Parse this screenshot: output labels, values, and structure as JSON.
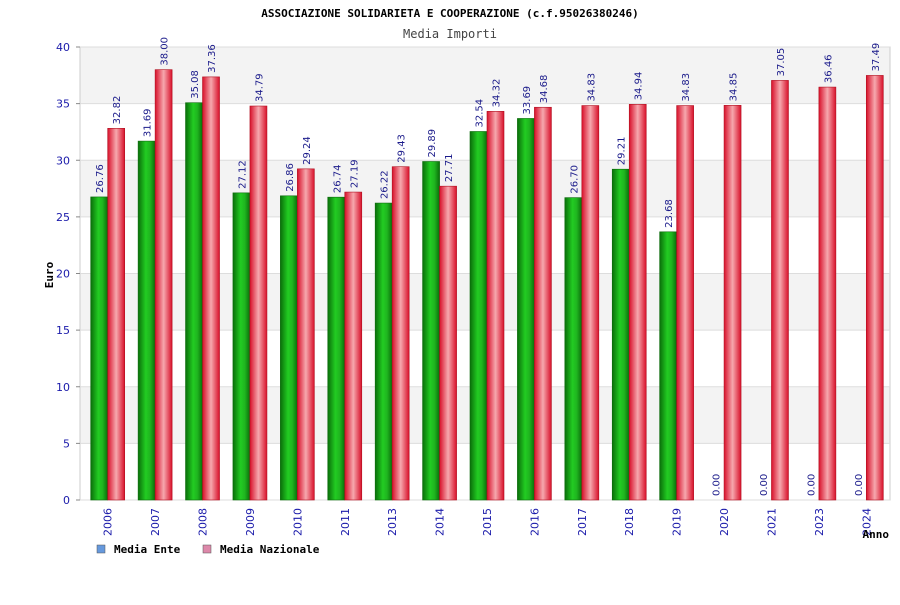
{
  "chart_data": {
    "type": "bar",
    "title": "ASSOCIAZIONE SOLIDARIETA E COOPERAZIONE (c.f.95026380246)",
    "subtitle": "Media Importi",
    "xlabel": "Anno",
    "ylabel": "Euro",
    "ylim": [
      0,
      40
    ],
    "yticks": [
      "0",
      "5",
      "10",
      "15",
      "20",
      "25",
      "30",
      "35",
      "40"
    ],
    "grid": true,
    "legend_position": "bottom-left",
    "categories": [
      "2006",
      "2007",
      "2008",
      "2009",
      "2010",
      "2011",
      "2013",
      "2014",
      "2015",
      "2016",
      "2017",
      "2018",
      "2019",
      "2020",
      "2021",
      "2023",
      "2024"
    ],
    "series": [
      {
        "name": "Media Ente",
        "color": "#1aa81a",
        "legend_color": "#6699dd",
        "values": [
          26.76,
          31.69,
          35.08,
          27.12,
          26.86,
          26.74,
          26.22,
          29.89,
          32.54,
          33.69,
          26.7,
          29.21,
          23.68,
          0.0,
          0.0,
          0.0,
          0.0
        ],
        "labels": [
          "26.76",
          "31.69",
          "35.08",
          "27.12",
          "26.86",
          "26.74",
          "26.22",
          "29.89",
          "32.54",
          "33.69",
          "26.70",
          "29.21",
          "23.68",
          "0.00",
          "0.00",
          "0.00",
          "0.00"
        ]
      },
      {
        "name": "Media Nazionale",
        "color": "#e8323c",
        "legend_color": "#dd88aa",
        "values": [
          32.82,
          38.0,
          37.36,
          34.79,
          29.24,
          27.19,
          29.43,
          27.71,
          34.32,
          34.68,
          34.83,
          34.94,
          34.83,
          34.85,
          37.05,
          36.46,
          37.49
        ],
        "labels": [
          "32.82",
          "38.00",
          "37.36",
          "34.79",
          "29.24",
          "27.19",
          "29.43",
          "27.71",
          "34.32",
          "34.68",
          "34.83",
          "34.94",
          "34.83",
          "34.85",
          "37.05",
          "36.46",
          "37.49"
        ]
      }
    ]
  }
}
